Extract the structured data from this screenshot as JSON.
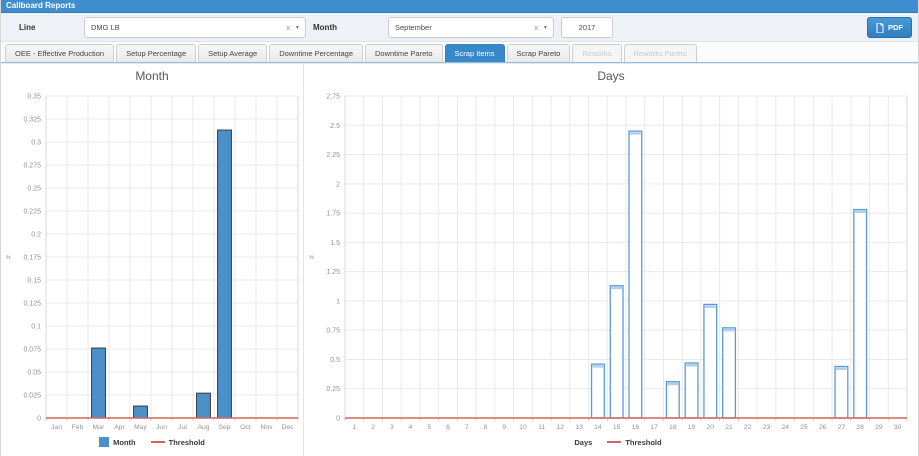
{
  "header": {
    "title": "Callboard Reports"
  },
  "toolbar": {
    "line_label": "Line",
    "line_value": "DMG LB",
    "month_label": "Month",
    "month_value": "September",
    "year_value": "2017",
    "pdf_label": "PDF",
    "clear_icon": "x",
    "dropdown_icon": "▾"
  },
  "tabs": [
    {
      "label": "OEE - Effective Production",
      "state": "normal"
    },
    {
      "label": "Setup Percentage",
      "state": "normal"
    },
    {
      "label": "Setup Average",
      "state": "normal"
    },
    {
      "label": "Downtime Percentage",
      "state": "normal"
    },
    {
      "label": "Downtime Pareto",
      "state": "normal"
    },
    {
      "label": "Scrap Items",
      "state": "active"
    },
    {
      "label": "Scrap Pareto",
      "state": "normal"
    },
    {
      "label": "Reworks",
      "state": "disabled"
    },
    {
      "label": "Reworks Pareto",
      "state": "disabled"
    }
  ],
  "colors": {
    "header_bg": "#3e8ecf",
    "accent": "#3789ca",
    "bar_fill": "#4a90c9",
    "bar_stroke": "#3b3b3b",
    "bar_outline": "#5b9bd5",
    "bar_cap": "#aecfeb",
    "threshold": "#d4655c",
    "grid": "#e9e9e9",
    "grid_edge": "#d9d9d9",
    "tick_text": "#949494"
  },
  "chart_data": [
    {
      "type": "bar",
      "title": "Month",
      "ylabel": "#",
      "categories": [
        "Jan",
        "Feb",
        "Mar",
        "Apr",
        "May",
        "Jun",
        "Jul",
        "Aug",
        "Sep",
        "Oct",
        "Nov",
        "Dec"
      ],
      "values": [
        0,
        0,
        0.076,
        0,
        0.013,
        0,
        0,
        0.027,
        0.313,
        0,
        0,
        0
      ],
      "ylim": [
        0,
        0.35
      ],
      "ytick_step": 0.025,
      "threshold": 0,
      "bar_style": "filled",
      "grid": true,
      "legend_position": "bottom",
      "legend": [
        {
          "label": "Month",
          "swatch": "filled-box"
        },
        {
          "label": "Threshold",
          "swatch": "line"
        }
      ]
    },
    {
      "type": "bar",
      "title": "Days",
      "ylabel": "#",
      "categories": [
        "1",
        "2",
        "3",
        "4",
        "5",
        "6",
        "7",
        "8",
        "9",
        "10",
        "11",
        "12",
        "13",
        "14",
        "15",
        "16",
        "17",
        "18",
        "19",
        "20",
        "21",
        "22",
        "23",
        "24",
        "25",
        "26",
        "27",
        "28",
        "29",
        "30"
      ],
      "values": [
        0,
        0,
        0,
        0,
        0,
        0,
        0,
        0,
        0,
        0,
        0,
        0,
        0,
        0.46,
        1.13,
        2.45,
        0,
        0.31,
        0.47,
        0.97,
        0.77,
        0,
        0,
        0,
        0,
        0,
        0.44,
        1.78,
        0,
        0
      ],
      "ylim": [
        0,
        2.75
      ],
      "ytick_step": 0.25,
      "threshold": 0,
      "bar_style": "outlined",
      "grid": true,
      "legend_position": "bottom",
      "legend": [
        {
          "label": "Days",
          "swatch": "white-box"
        },
        {
          "label": "Threshold",
          "swatch": "line"
        }
      ]
    }
  ]
}
